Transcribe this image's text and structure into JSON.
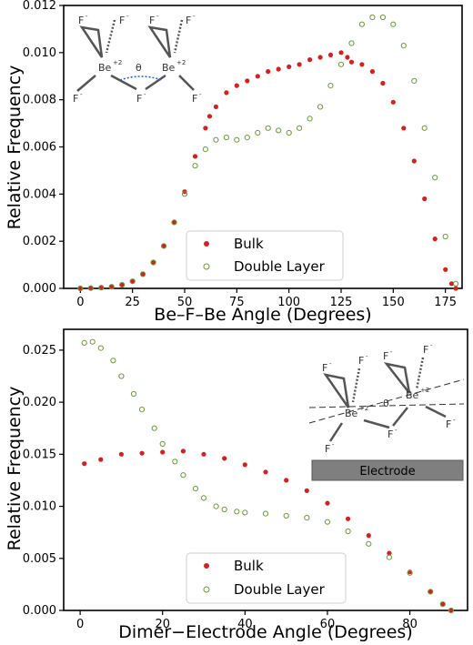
{
  "chart_data": [
    {
      "type": "scatter",
      "xlabel": "Be–F–Be Angle (Degrees)",
      "ylabel": "Relative Frequency",
      "xlim": [
        -8,
        183
      ],
      "ylim": [
        0,
        0.012
      ],
      "xticks": [
        0,
        25,
        50,
        75,
        100,
        125,
        150,
        175
      ],
      "yticks": [
        0.0,
        0.002,
        0.004,
        0.006,
        0.008,
        0.01,
        0.012
      ],
      "ytick_labels": [
        "0.000",
        "0.002",
        "0.004",
        "0.006",
        "0.008",
        "0.010",
        "0.012"
      ],
      "legend_position": "bottom-center",
      "inset_labels": {
        "f": "F",
        "minus": "-",
        "be": "Be",
        "plus2": "+2",
        "theta": "θ"
      },
      "series": [
        {
          "name": "Bulk",
          "color": "#d62020",
          "marker": "filled-circle",
          "x": [
            0,
            5,
            10,
            15,
            20,
            25,
            30,
            35,
            40,
            45,
            50,
            55,
            60,
            62,
            65,
            70,
            75,
            80,
            85,
            90,
            95,
            100,
            105,
            110,
            115,
            120,
            125,
            128,
            130,
            135,
            140,
            145,
            150,
            155,
            160,
            165,
            170,
            175,
            178,
            180
          ],
          "y": [
            0.0,
            1e-05,
            3e-05,
            7e-05,
            0.00015,
            0.0003,
            0.0006,
            0.0011,
            0.0018,
            0.0028,
            0.0041,
            0.0056,
            0.0068,
            0.0073,
            0.0077,
            0.0083,
            0.0086,
            0.0088,
            0.009,
            0.0092,
            0.0093,
            0.0094,
            0.0095,
            0.0097,
            0.0098,
            0.0099,
            0.01,
            0.0098,
            0.0096,
            0.0095,
            0.0092,
            0.0087,
            0.0079,
            0.0068,
            0.0054,
            0.0038,
            0.0021,
            0.0008,
            0.0002,
            0.0
          ]
        },
        {
          "name": "Double Layer",
          "color": "#6a9a3a",
          "marker": "open-circle",
          "x": [
            0,
            5,
            10,
            15,
            20,
            25,
            30,
            35,
            40,
            45,
            50,
            55,
            60,
            65,
            70,
            75,
            80,
            85,
            90,
            95,
            100,
            105,
            110,
            115,
            120,
            125,
            130,
            135,
            140,
            145,
            150,
            155,
            160,
            165,
            170,
            175,
            180
          ],
          "y": [
            0.0,
            1e-05,
            3e-05,
            7e-05,
            0.00015,
            0.0003,
            0.0006,
            0.0011,
            0.0018,
            0.0028,
            0.004,
            0.0052,
            0.0059,
            0.0063,
            0.0064,
            0.0063,
            0.0064,
            0.0066,
            0.0068,
            0.0067,
            0.0066,
            0.0068,
            0.0072,
            0.0077,
            0.0086,
            0.0095,
            0.0104,
            0.0112,
            0.0115,
            0.0115,
            0.0112,
            0.0103,
            0.0088,
            0.0068,
            0.0047,
            0.0022,
            0.0002
          ]
        }
      ]
    },
    {
      "type": "scatter",
      "xlabel": "Dimer−Electrode Angle (Degrees)",
      "ylabel": "Relative Frequency",
      "xlim": [
        -4,
        94
      ],
      "ylim": [
        0,
        0.027
      ],
      "xticks": [
        0,
        20,
        40,
        60,
        80
      ],
      "yticks": [
        0.0,
        0.005,
        0.01,
        0.015,
        0.02,
        0.025
      ],
      "ytick_labels": [
        "0.000",
        "0.005",
        "0.010",
        "0.015",
        "0.020",
        "0.025"
      ],
      "legend_position": "bottom-left",
      "inset_labels": {
        "f": "F",
        "minus": "-",
        "be": "Be",
        "plus2": "+2",
        "theta": "θ",
        "electrode": "Electrode"
      },
      "series": [
        {
          "name": "Bulk",
          "color": "#d62020",
          "marker": "filled-circle",
          "x": [
            1,
            5,
            10,
            15,
            20,
            25,
            30,
            35,
            40,
            45,
            50,
            55,
            60,
            65,
            70,
            75,
            80,
            85,
            88,
            90
          ],
          "y": [
            0.0141,
            0.0145,
            0.015,
            0.0151,
            0.0152,
            0.0153,
            0.015,
            0.0146,
            0.014,
            0.0133,
            0.0125,
            0.0115,
            0.0103,
            0.0088,
            0.0072,
            0.0055,
            0.0037,
            0.0018,
            0.0006,
            0.0
          ]
        },
        {
          "name": "Double Layer",
          "color": "#6a9a3a",
          "marker": "open-circle",
          "x": [
            1,
            3,
            5,
            8,
            10,
            13,
            15,
            18,
            20,
            23,
            25,
            28,
            30,
            33,
            35,
            38,
            40,
            45,
            50,
            55,
            60,
            65,
            70,
            75,
            80,
            85,
            88,
            90
          ],
          "y": [
            0.0257,
            0.0258,
            0.0252,
            0.024,
            0.0225,
            0.0208,
            0.0193,
            0.0175,
            0.016,
            0.0143,
            0.013,
            0.0117,
            0.0108,
            0.01,
            0.0097,
            0.0095,
            0.0094,
            0.0093,
            0.0091,
            0.0089,
            0.0085,
            0.0076,
            0.0064,
            0.0051,
            0.0036,
            0.0018,
            0.0006,
            0.0
          ]
        }
      ]
    }
  ]
}
